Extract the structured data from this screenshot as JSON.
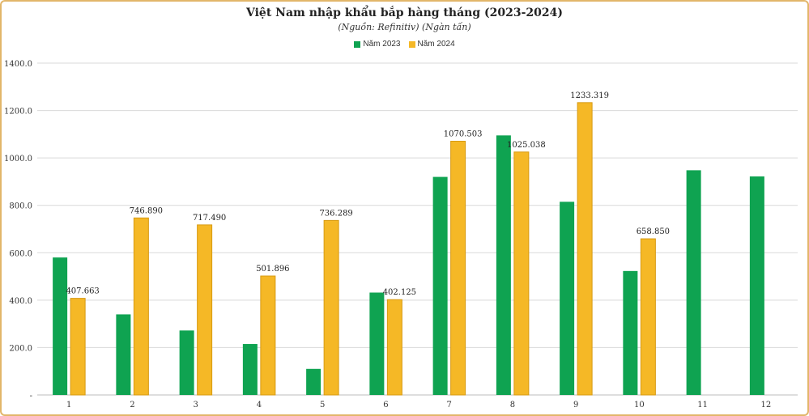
{
  "chart_data": {
    "type": "bar",
    "title": "Việt Nam nhập khẩu bắp hàng tháng (2023-2024)",
    "subtitle": "(Nguồn: Refinitiv) (Ngàn tấn)",
    "categories": [
      "1",
      "2",
      "3",
      "4",
      "5",
      "6",
      "7",
      "8",
      "9",
      "10",
      "11",
      "12"
    ],
    "series": [
      {
        "name": "Năm 2023",
        "color": "#0fa351",
        "values": [
          580,
          340,
          272,
          215,
          110,
          432,
          920,
          1095,
          815,
          523,
          948,
          922
        ],
        "labels": [
          "",
          "",
          "",
          "",
          "",
          "",
          "",
          "",
          "",
          "",
          "",
          ""
        ]
      },
      {
        "name": "Năm 2024",
        "color": "#f5b826",
        "values": [
          407.663,
          746.89,
          717.49,
          501.896,
          736.289,
          402.125,
          1070.503,
          1025.038,
          1233.319,
          658.85,
          null,
          null
        ],
        "labels": [
          "407.663",
          "746.890",
          "717.490",
          "501.896",
          "736.289",
          "402.125",
          "1070.503",
          "1025.038",
          "1233.319",
          "658.850",
          "",
          ""
        ]
      }
    ],
    "y_ticks": [
      "-",
      "200.0",
      "400.0",
      "600.0",
      "800.0",
      "1000.0",
      "1200.0",
      "1400.0"
    ],
    "ylim": [
      0,
      1400
    ],
    "grid": true,
    "legend": "top-center"
  }
}
